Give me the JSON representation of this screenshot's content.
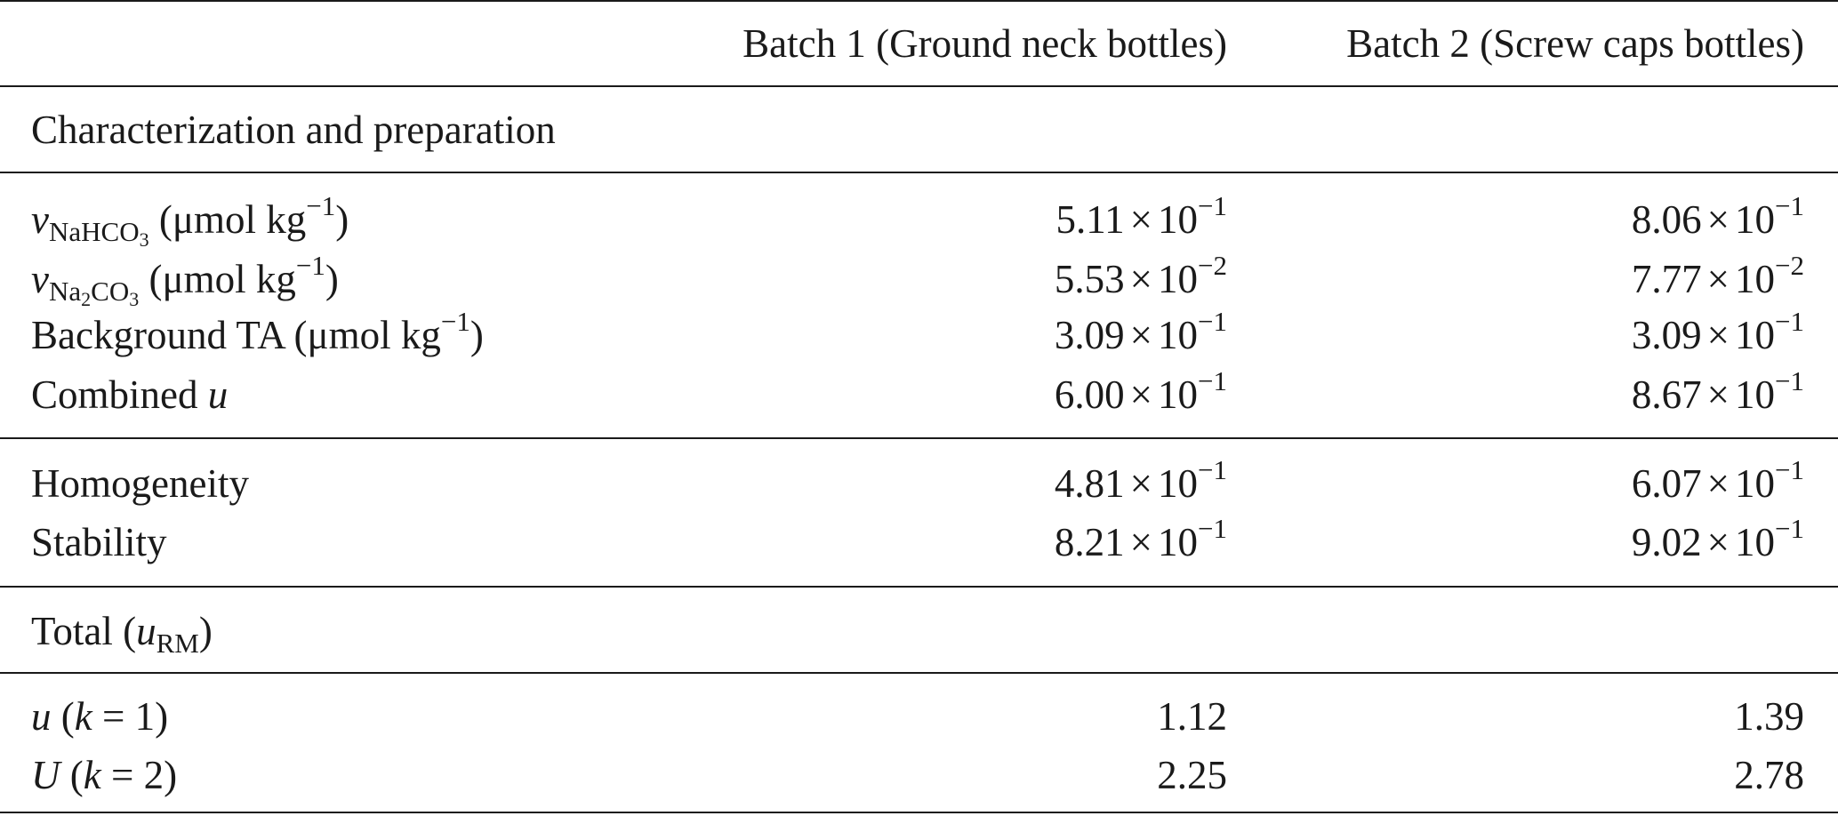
{
  "columns": [
    "",
    "Batch 1 (Ground neck bottles)",
    "Batch 2 (Screw caps bottles)"
  ],
  "sections": [
    {
      "title": "Characterization and preparation",
      "groups": [
        {
          "rows": [
            {
              "label_symbol": "ν",
              "label_sub": "NaHCO",
              "label_sub2": "3",
              "label_unit": " (μmol kg",
              "label_unit_sup": "−1",
              "label_unit_close": ")",
              "b1_mant": "5.11",
              "b1_exp": "−1",
              "b2_mant": "8.06",
              "b2_exp": "−1"
            },
            {
              "label_symbol": "ν",
              "label_sub": "Na",
              "label_sub_mid": "2",
              "label_sub_tail": "CO",
              "label_sub2": "3",
              "label_unit": " (μmol kg",
              "label_unit_sup": "−1",
              "label_unit_close": ")",
              "b1_mant": "5.53",
              "b1_exp": "−2",
              "b2_mant": "7.77",
              "b2_exp": "−2"
            },
            {
              "label_text": "Background TA (μmol kg",
              "label_unit_sup": "−1",
              "label_unit_close": ")",
              "b1_mant": "3.09",
              "b1_exp": "−1",
              "b2_mant": "3.09",
              "b2_exp": "−1"
            },
            {
              "label_text": "Combined ",
              "label_italic": "u",
              "b1_mant": "6.00",
              "b1_exp": "−1",
              "b2_mant": "8.67",
              "b2_exp": "−1"
            }
          ]
        },
        {
          "rows": [
            {
              "label_text": "Homogeneity",
              "b1_mant": "4.81",
              "b1_exp": "−1",
              "b2_mant": "6.07",
              "b2_exp": "−1"
            },
            {
              "label_text": "Stability",
              "b1_mant": "8.21",
              "b1_exp": "−1",
              "b2_mant": "9.02",
              "b2_exp": "−1"
            }
          ]
        }
      ]
    },
    {
      "title_text": "Total (",
      "title_italic": "u",
      "title_sub": "RM",
      "title_close": ")",
      "rows": [
        {
          "label_italic": "u",
          "label_rest": " (",
          "label_k": "k",
          "label_eq": " = 1)",
          "b1": "1.12",
          "b2": "1.39"
        },
        {
          "label_italic": "U",
          "label_rest": " (",
          "label_k": "k",
          "label_eq": " = 2)",
          "b1": "2.25",
          "b2": "2.78"
        }
      ]
    }
  ],
  "times_symbol": "×",
  "base": "10"
}
